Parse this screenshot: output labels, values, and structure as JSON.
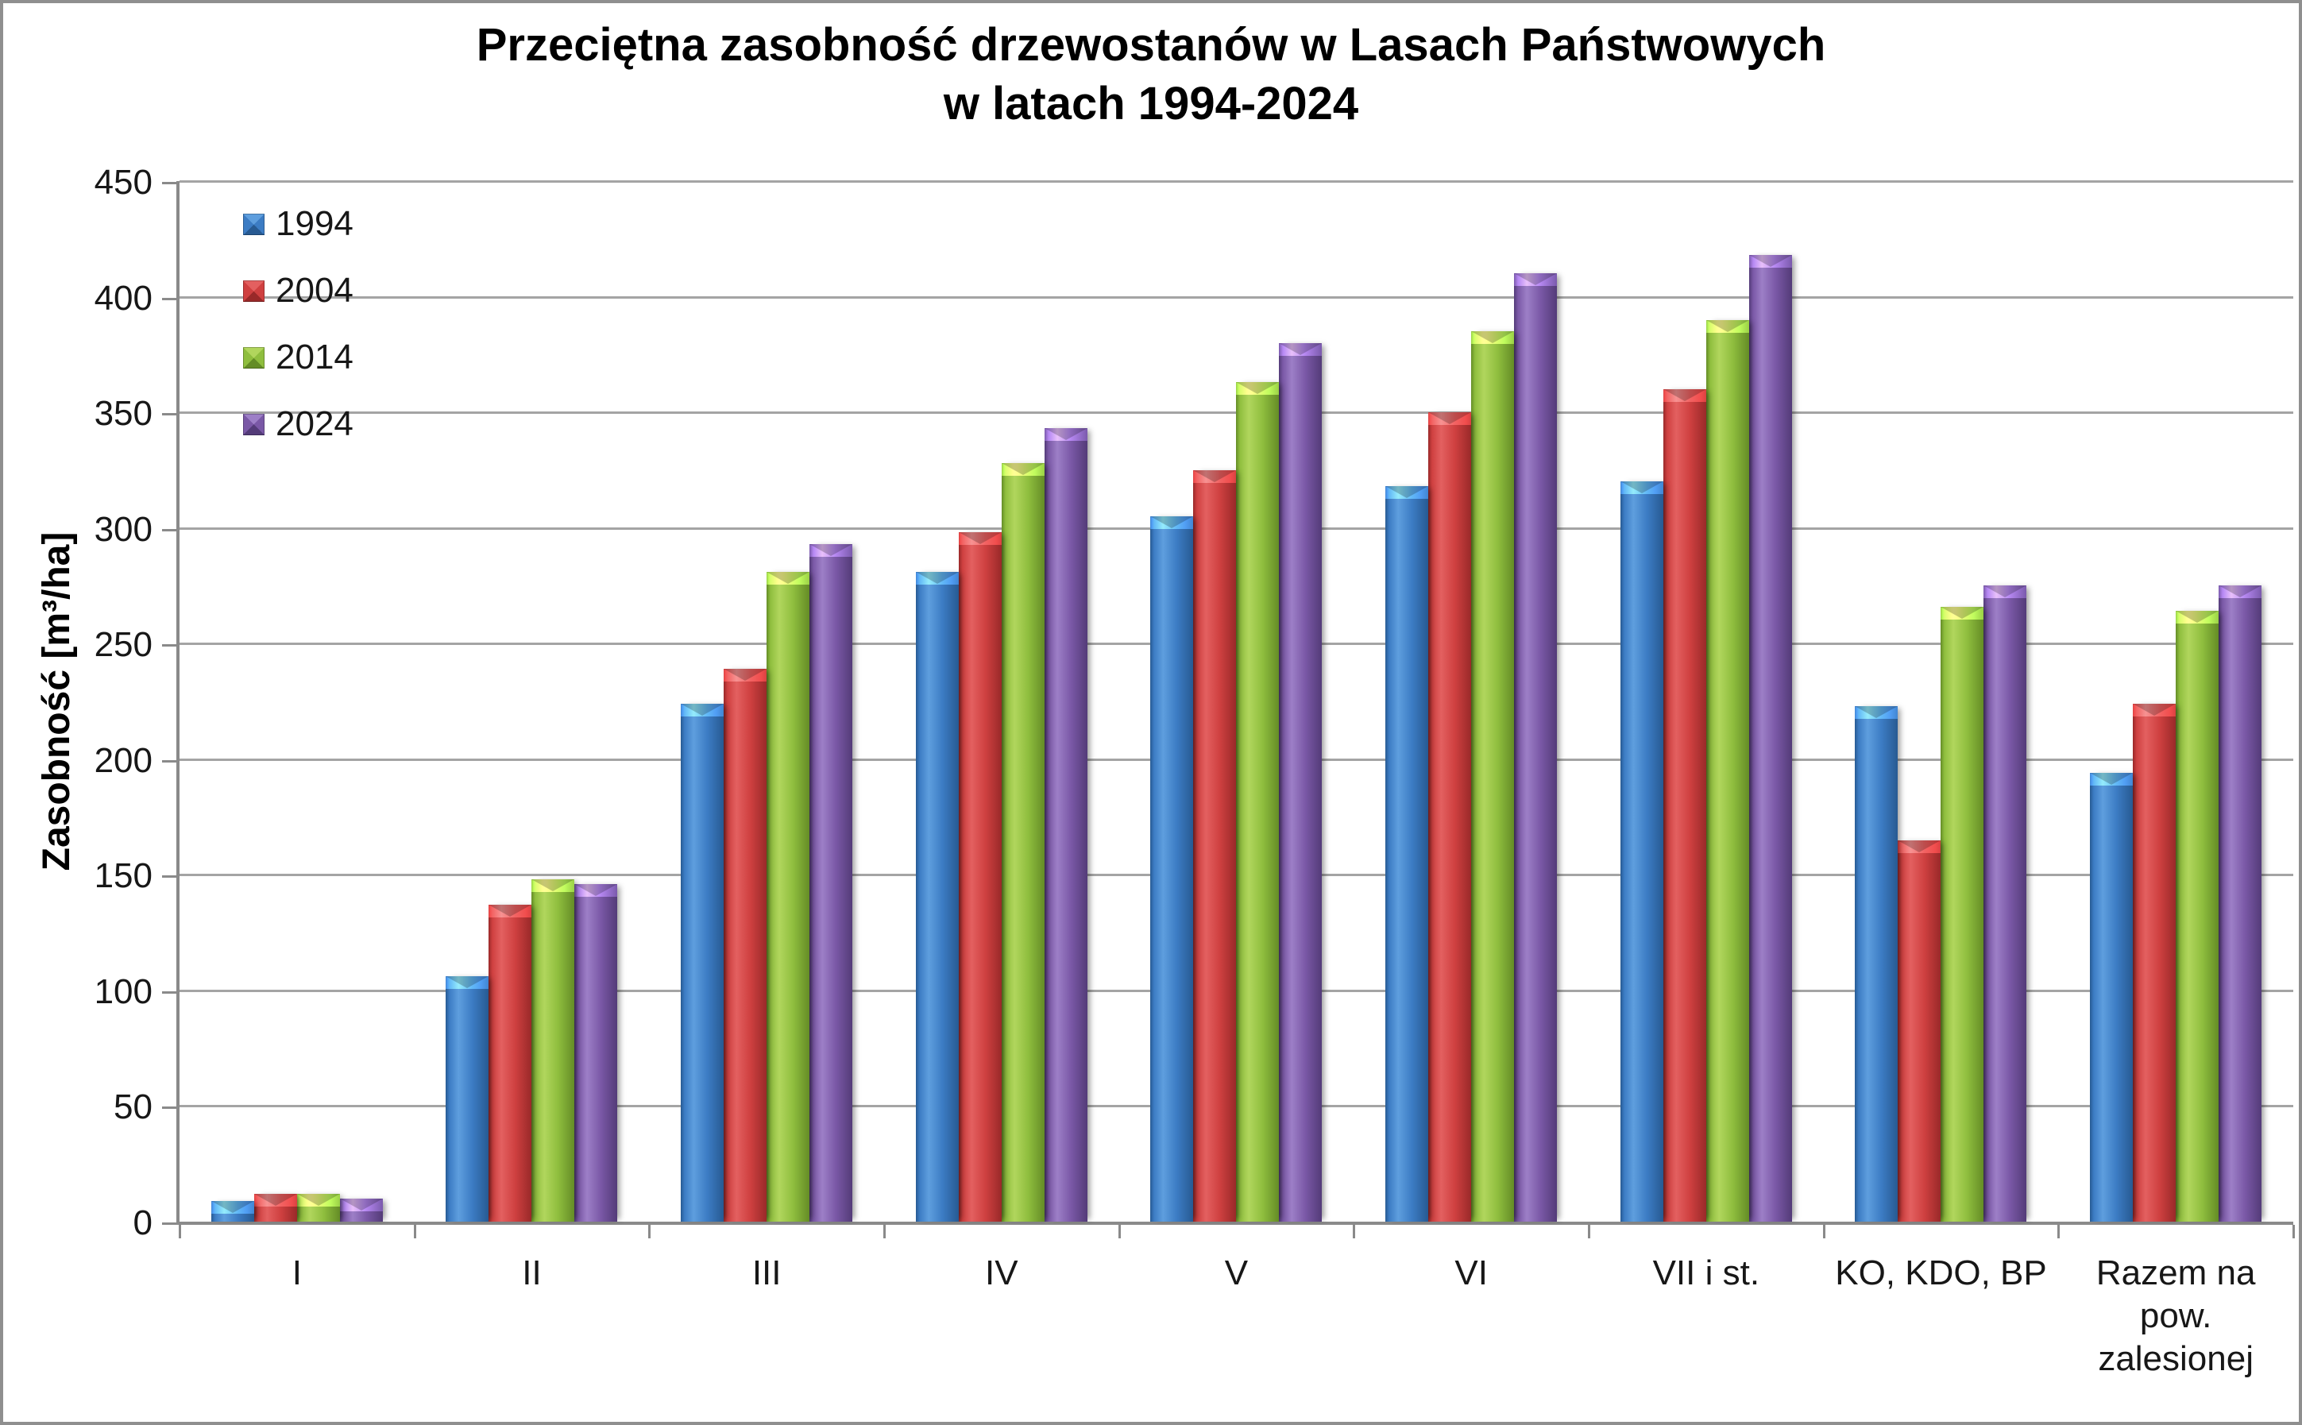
{
  "title": {
    "line1": "Przeciętna zasobność drzewostanów w Lasach Państwowych",
    "line2": "w latach 1994-2024"
  },
  "axes": {
    "y_title": "Zasobność [m³/ha]",
    "y_min": 0,
    "y_max": 450,
    "y_step": 50,
    "y_ticks": [
      "0",
      "50",
      "100",
      "150",
      "200",
      "250",
      "300",
      "350",
      "400",
      "450"
    ]
  },
  "legend": {
    "position": "top-left-inside",
    "items": [
      "1994",
      "2004",
      "2014",
      "2024"
    ]
  },
  "colors": {
    "axis": "#8a8a8a",
    "gridline": "#a4a4a4",
    "series_1994": {
      "base": "#3c7cc4",
      "light": "#5e9ede",
      "dark": "#275a92"
    },
    "series_2004": {
      "base": "#cf4040",
      "light": "#e36060",
      "dark": "#992929"
    },
    "series_2014": {
      "base": "#8fbe3e",
      "light": "#b1d65d",
      "dark": "#648c26"
    },
    "series_2024": {
      "base": "#7a58a6",
      "light": "#9d7fc7",
      "dark": "#533b78"
    }
  },
  "chart_data": {
    "type": "bar",
    "title": "Przeciętna zasobność drzewostanów w Lasach Państwowych w latach 1994-2024",
    "xlabel": "",
    "ylabel": "Zasobność [m³/ha]",
    "ylim": [
      0,
      450
    ],
    "grid": true,
    "legend_position": "upper left inside plot",
    "categories": [
      "I",
      "II",
      "III",
      "IV",
      "V",
      "VI",
      "VII i st.",
      "KO, KDO, BP",
      "Razem na pow. zalesionej"
    ],
    "series": [
      {
        "name": "1994",
        "color": "#3c7cc4",
        "values": [
          9,
          106,
          224,
          281,
          305,
          318,
          320,
          223,
          194
        ]
      },
      {
        "name": "2004",
        "color": "#cf4040",
        "values": [
          12,
          137,
          239,
          298,
          325,
          350,
          360,
          165,
          224
        ]
      },
      {
        "name": "2014",
        "color": "#8fbe3e",
        "values": [
          12,
          148,
          281,
          328,
          363,
          385,
          390,
          266,
          264
        ]
      },
      {
        "name": "2024",
        "color": "#7a58a6",
        "values": [
          10,
          146,
          293,
          343,
          380,
          410,
          418,
          275,
          275
        ]
      }
    ]
  }
}
